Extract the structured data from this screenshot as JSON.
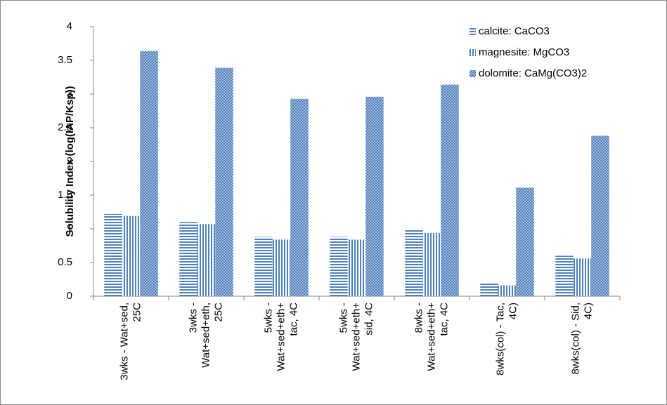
{
  "chart_data": {
    "type": "bar",
    "y_label": "Solubility  Index (log(IAP/Ksp))",
    "categories": [
      "3wks - Wat+sed, 25C",
      "3wks - Wat+sed+eth, 25C",
      "5wks - Wat+sed+eth+ tac, 4C",
      "5wks - Wat+sed+eth+ sid, 4C",
      "8wks - Wat+sed+eth+ tac, 4C",
      "8wks(col) - Tac, 4C)",
      "8wks(col) - Sid, 4C)"
    ],
    "series": [
      {
        "name": "calcite: CaCO3",
        "color": "#4f81bd",
        "pattern": "horizontal",
        "values": [
          1.22,
          1.1,
          0.88,
          0.88,
          0.99,
          0.19,
          0.6
        ]
      },
      {
        "name": "magnesite: MgCO3",
        "color": "#4f81bd",
        "pattern": "vertical",
        "values": [
          1.19,
          1.07,
          0.84,
          0.84,
          0.94,
          0.16,
          0.56
        ]
      },
      {
        "name": "dolomite: CaMg(CO3)2",
        "color": "#4f81bd",
        "pattern": "dots",
        "values": [
          3.64,
          3.39,
          2.93,
          2.96,
          3.14,
          1.61,
          2.38
        ]
      }
    ],
    "ylim": [
      0,
      4
    ],
    "yticks": [
      0,
      0.5,
      1,
      1.5,
      2,
      2.5,
      3,
      3.5,
      4
    ],
    "grid": false,
    "legend": "top-right"
  }
}
